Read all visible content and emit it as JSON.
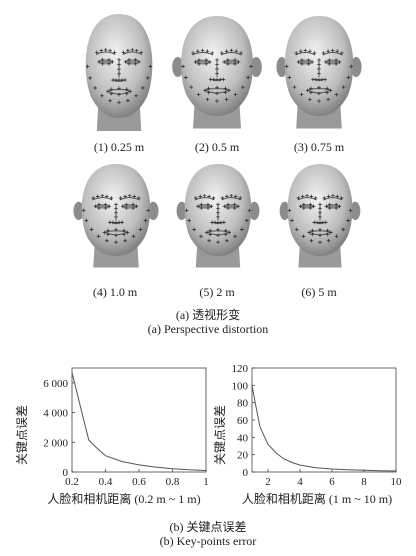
{
  "faces": [
    {
      "label": "(1) 0.25 m"
    },
    {
      "label": "(2) 0.5 m"
    },
    {
      "label": "(3) 0.75 m"
    },
    {
      "label": "(4) 1.0 m"
    },
    {
      "label": "(5) 2 m"
    },
    {
      "label": "(6) 5 m"
    }
  ],
  "captions": {
    "a_cn": "(a) 透视形变",
    "a_en": "(a) Perspective distortion",
    "b_cn": "(b) 关键点误差",
    "b_en": "(b) Key-points error"
  },
  "chart_data": [
    {
      "type": "line",
      "ylabel": "关键点误差",
      "xlabel": "人脸和相机距离 (0.2 m ~ 1 m)",
      "xlim": [
        0.2,
        1.0
      ],
      "ylim": [
        0,
        7000
      ],
      "xticks": [
        "0.2",
        "0.4",
        "0.6",
        "0.8",
        "1"
      ],
      "yticks": [
        "0",
        "2 000",
        "4 000",
        "6 000"
      ],
      "xtick_values": [
        0.2,
        0.4,
        0.6,
        0.8,
        1.0
      ],
      "ytick_values": [
        0,
        2000,
        4000,
        6000
      ],
      "series": [
        {
          "x": [
            0.2,
            0.25,
            0.3,
            0.35,
            0.4,
            0.5,
            0.6,
            0.7,
            0.8,
            0.9,
            1.0
          ],
          "values": [
            6700,
            4400,
            2150,
            1600,
            1100,
            700,
            480,
            330,
            220,
            150,
            100
          ]
        }
      ],
      "grid": false
    },
    {
      "type": "line",
      "ylabel": "关键点误差",
      "xlabel": "人脸和相机距离 (1 m ~ 10 m)",
      "xlim": [
        1,
        10
      ],
      "ylim": [
        0,
        120
      ],
      "xticks": [
        "2",
        "4",
        "6",
        "8",
        "10"
      ],
      "yticks": [
        "0",
        "20",
        "40",
        "60",
        "80",
        "100",
        "120"
      ],
      "xtick_values": [
        2,
        4,
        6,
        8,
        10
      ],
      "ytick_values": [
        0,
        20,
        40,
        60,
        80,
        100,
        120
      ],
      "series": [
        {
          "x": [
            1.0,
            1.2,
            1.5,
            2.0,
            2.5,
            3.0,
            3.5,
            4.0,
            5.0,
            6.0,
            7.0,
            8.0,
            9.0,
            10.0
          ],
          "values": [
            100,
            80,
            52,
            32,
            22,
            15,
            11,
            8,
            5,
            3.5,
            2.5,
            2,
            1.5,
            1.2
          ]
        }
      ],
      "grid": false
    }
  ],
  "colors": {
    "face_light": "#f2f2f2",
    "face_dark": "#6a6a6a",
    "marker": "#333333",
    "line": "#555555"
  }
}
